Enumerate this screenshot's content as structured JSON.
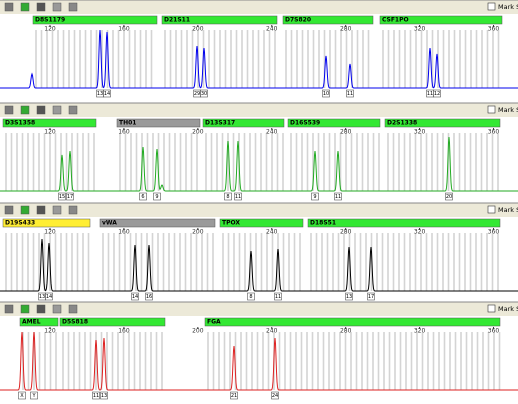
{
  "mark_label": "Mark Sam",
  "panels": [
    {
      "color": "#0000ee",
      "ticks": [
        120,
        160,
        200,
        240,
        280,
        320,
        360
      ],
      "markers": [
        {
          "name": "D8S1179",
          "color": "#33e833"
        },
        {
          "name": "D21S11",
          "color": "#33e833"
        },
        {
          "name": "D7S820",
          "color": "#33e833"
        },
        {
          "name": "CSF1PO",
          "color": "#33e833"
        }
      ],
      "alleles": [
        "13",
        "14",
        "29",
        "30",
        "10",
        "11",
        "11",
        "12"
      ]
    },
    {
      "color": "#22aa22",
      "ticks": [
        120,
        160,
        200,
        240,
        280,
        320,
        360
      ],
      "markers": [
        {
          "name": "D3S1358",
          "color": "#33e833"
        },
        {
          "name": "TH01",
          "color": "#9a9a9a"
        },
        {
          "name": "D13S317",
          "color": "#33e833"
        },
        {
          "name": "D16S539",
          "color": "#33e833"
        },
        {
          "name": "D2S1338",
          "color": "#33e833"
        }
      ],
      "alleles": [
        "15",
        "17",
        "6",
        "9",
        "8",
        "11",
        "9",
        "11",
        "20"
      ]
    },
    {
      "color": "#000000",
      "ticks": [
        120,
        160,
        200,
        240,
        280,
        320,
        360
      ],
      "markers": [
        {
          "name": "D19S433",
          "color": "#ffee33"
        },
        {
          "name": "vWA",
          "color": "#9a9a9a"
        },
        {
          "name": "TPOX",
          "color": "#33e833"
        },
        {
          "name": "D18S51",
          "color": "#33e833"
        }
      ],
      "alleles": [
        "13",
        "14",
        "14",
        "16",
        "8",
        "11",
        "13",
        "17"
      ]
    },
    {
      "color": "#dd2222",
      "ticks": [
        120,
        160,
        200,
        240,
        280,
        320,
        360
      ],
      "markers": [
        {
          "name": "AMEL",
          "color": "#33e833"
        },
        {
          "name": "D5S818",
          "color": "#33e833"
        },
        {
          "name": "FGA",
          "color": "#33e833"
        }
      ],
      "alleles": [
        "X",
        "Y",
        "11",
        "13",
        "21",
        "24"
      ]
    }
  ]
}
